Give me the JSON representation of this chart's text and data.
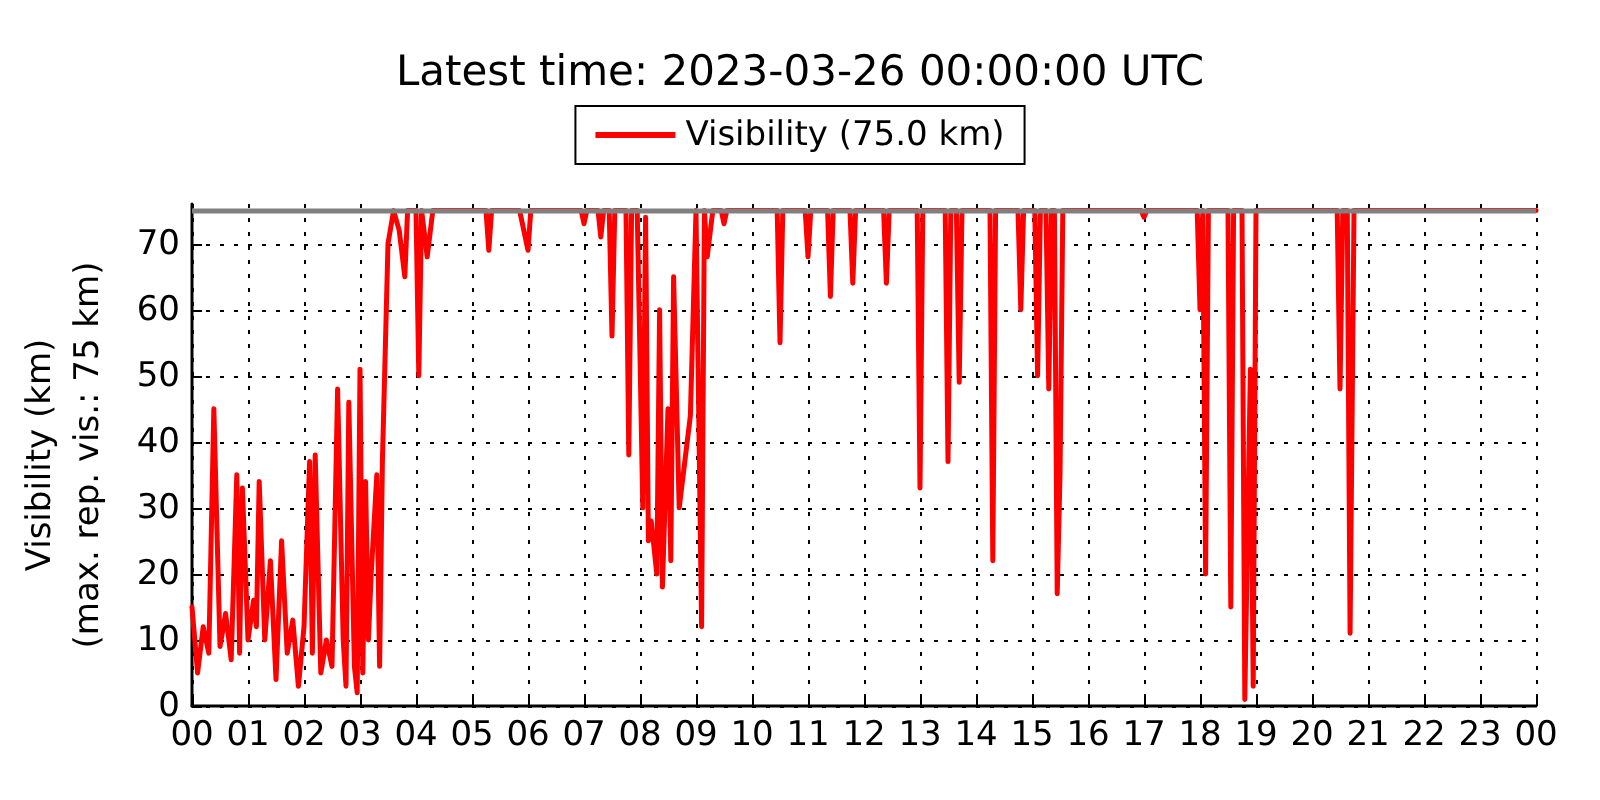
{
  "chart_data": {
    "type": "line",
    "title": "Latest time: 2023-03-26 00:00:00 UTC",
    "ylabel": "Visibility (km)\n(max. rep. vis.: 75 km)",
    "xlim": [
      0,
      24
    ],
    "ylim": [
      0,
      76
    ],
    "xticks": [
      {
        "value": 0,
        "label": "00"
      },
      {
        "value": 1,
        "label": "01"
      },
      {
        "value": 2,
        "label": "02"
      },
      {
        "value": 3,
        "label": "03"
      },
      {
        "value": 4,
        "label": "04"
      },
      {
        "value": 5,
        "label": "05"
      },
      {
        "value": 6,
        "label": "06"
      },
      {
        "value": 7,
        "label": "07"
      },
      {
        "value": 8,
        "label": "08"
      },
      {
        "value": 9,
        "label": "09"
      },
      {
        "value": 10,
        "label": "10"
      },
      {
        "value": 11,
        "label": "11"
      },
      {
        "value": 12,
        "label": "12"
      },
      {
        "value": 13,
        "label": "13"
      },
      {
        "value": 14,
        "label": "14"
      },
      {
        "value": 15,
        "label": "15"
      },
      {
        "value": 16,
        "label": "16"
      },
      {
        "value": 17,
        "label": "17"
      },
      {
        "value": 18,
        "label": "18"
      },
      {
        "value": 19,
        "label": "19"
      },
      {
        "value": 20,
        "label": "20"
      },
      {
        "value": 21,
        "label": "21"
      },
      {
        "value": 22,
        "label": "22"
      },
      {
        "value": 23,
        "label": "23"
      },
      {
        "value": 24,
        "label": "00"
      }
    ],
    "yticks": [
      0,
      10,
      20,
      30,
      40,
      50,
      60,
      70
    ],
    "grid": true,
    "legend": "top",
    "marker": "none",
    "line_style": "solid",
    "ref_lines": [
      {
        "axis": "y",
        "value": 75,
        "color": "#808080"
      }
    ],
    "series": [
      {
        "name": "Visibility (75.0 km)",
        "color": "#ff0000",
        "x": [
          0,
          0.1,
          0.2,
          0.3,
          0.39,
          0.5,
          0.6,
          0.7,
          0.8,
          0.85,
          0.9,
          1,
          1.1,
          1.15,
          1.2,
          1.3,
          1.4,
          1.5,
          1.6,
          1.7,
          1.8,
          1.9,
          2,
          2.1,
          2.15,
          2.2,
          2.3,
          2.4,
          2.5,
          2.6,
          2.7,
          2.75,
          2.8,
          2.9,
          2.95,
          3,
          3.05,
          3.1,
          3.15,
          3.2,
          3.3,
          3.35,
          3.4,
          3.5,
          3.6,
          3.7,
          3.8,
          3.85,
          4,
          4.05,
          4.1,
          4.2,
          4.3,
          5.25,
          5.3,
          5.35,
          5.85,
          5.9,
          6,
          6.05,
          6.95,
          7,
          7.05,
          7.25,
          7.3,
          7.35,
          7.45,
          7.5,
          7.55,
          7.75,
          7.8,
          7.85,
          7.95,
          8,
          8.05,
          8.1,
          8.15,
          8.2,
          8.3,
          8.35,
          8.4,
          8.5,
          8.55,
          8.6,
          8.7,
          8.8,
          8.9,
          9,
          9.1,
          9.15,
          9.2,
          9.3,
          9.45,
          9.5,
          9.55,
          10.45,
          10.5,
          10.55,
          10.95,
          11,
          11.05,
          11.35,
          11.4,
          11.45,
          11.75,
          11.8,
          11.85,
          12.35,
          12.4,
          12.45,
          12.95,
          13,
          13.05,
          13.45,
          13.5,
          13.55,
          13.65,
          13.7,
          13.75,
          14.25,
          14.3,
          14.35,
          14.75,
          14.8,
          14.85,
          15.05,
          15.1,
          15.15,
          15.25,
          15.3,
          15.35,
          15.4,
          15.45,
          15.5,
          15.55,
          16.95,
          17,
          17.05,
          17.95,
          18,
          18.05,
          18.1,
          18.15,
          18.5,
          18.55,
          18.6,
          18.75,
          18.8,
          18.9,
          18.95,
          19,
          20.45,
          20.5,
          20.55,
          20.63,
          20.68,
          20.75,
          24
        ],
        "values": [
          15,
          5,
          12,
          8,
          45,
          9,
          14,
          7,
          35,
          8,
          33,
          10,
          16,
          12,
          34,
          10,
          22,
          4,
          25,
          8,
          13,
          3,
          12,
          37,
          8,
          38,
          5,
          10,
          6,
          48,
          10,
          3,
          46,
          6,
          2,
          51,
          5,
          34,
          10,
          20,
          35,
          6,
          37,
          70,
          75,
          72,
          65,
          75,
          75,
          50,
          75,
          68,
          75,
          75,
          69,
          75,
          75,
          73,
          69,
          75,
          75,
          73,
          75,
          75,
          71,
          75,
          75,
          56,
          75,
          75,
          38,
          75,
          75,
          53,
          30,
          74,
          25,
          28,
          20,
          60,
          18,
          45,
          22,
          65,
          30,
          37,
          44,
          75,
          12,
          75,
          68,
          75,
          75,
          73,
          75,
          75,
          55,
          75,
          75,
          68,
          75,
          75,
          62,
          75,
          75,
          64,
          75,
          75,
          64,
          75,
          75,
          33,
          75,
          75,
          37,
          75,
          75,
          49,
          75,
          75,
          22,
          75,
          75,
          60,
          75,
          75,
          50,
          75,
          75,
          48,
          75,
          75,
          17,
          35,
          75,
          75,
          74,
          75,
          75,
          60,
          75,
          20,
          75,
          75,
          15,
          75,
          75,
          1,
          51,
          3,
          75,
          75,
          48,
          75,
          75,
          11,
          75,
          75
        ]
      }
    ]
  }
}
